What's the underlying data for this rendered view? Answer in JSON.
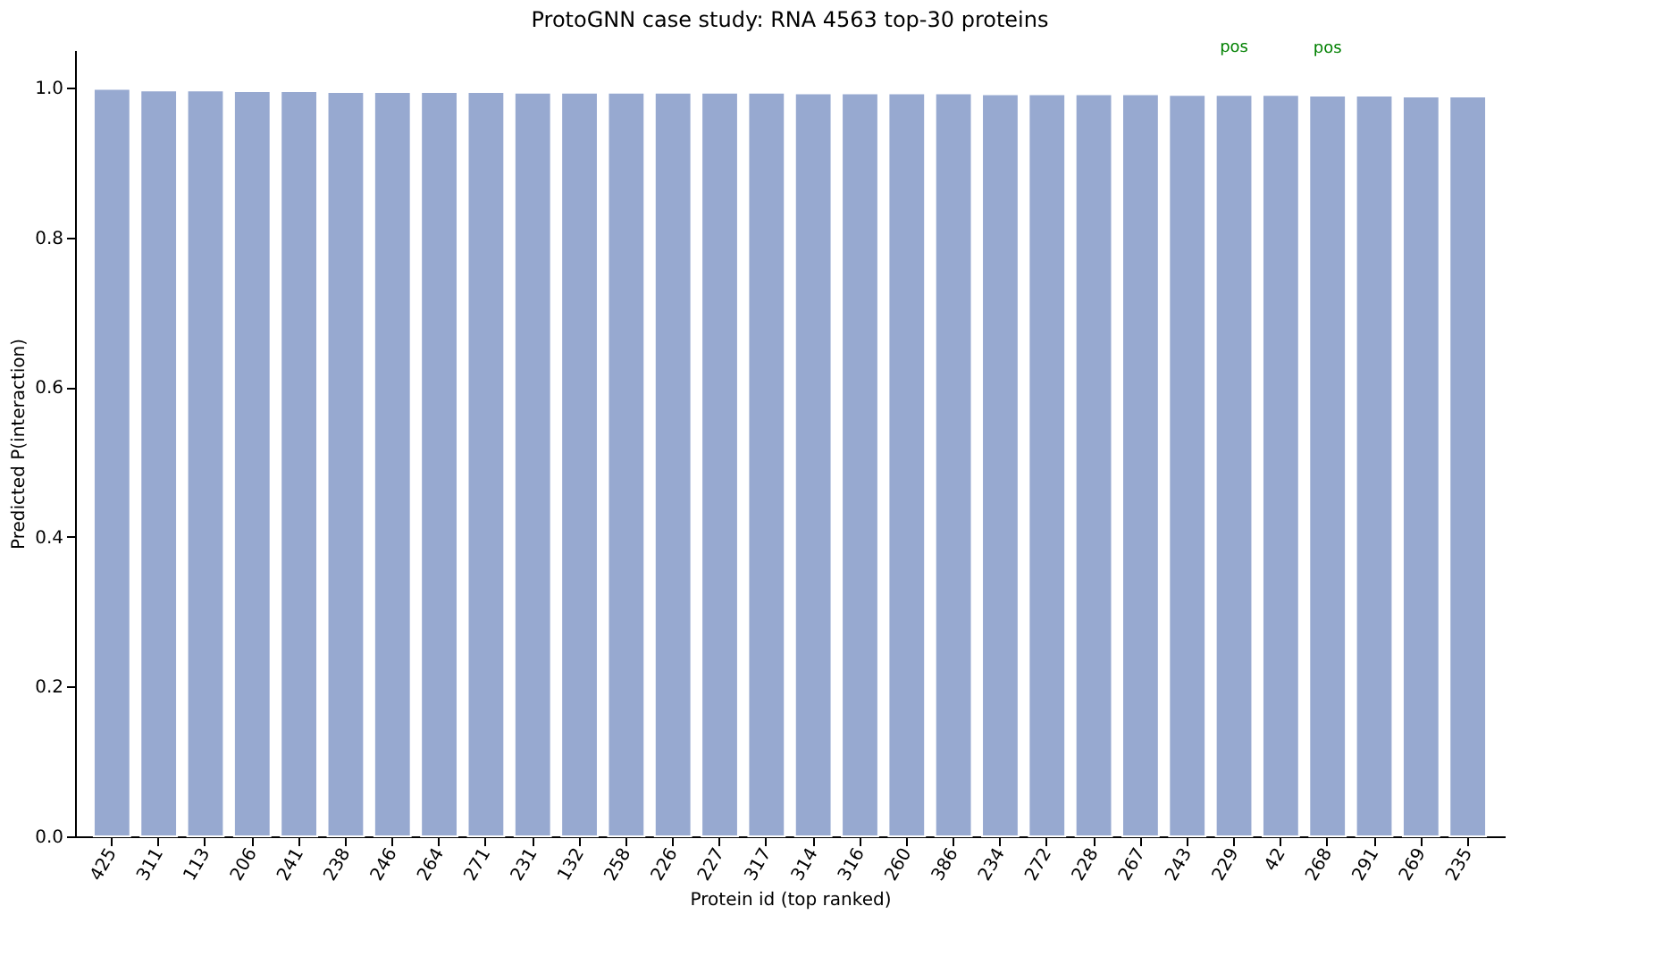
{
  "chart_data": {
    "type": "bar",
    "title": "ProtoGNN case study: RNA 4563 top-30 proteins",
    "xlabel": "Protein id (top ranked)",
    "ylabel": "Predicted P(interaction)",
    "categories": [
      "425",
      "311",
      "113",
      "206",
      "241",
      "238",
      "246",
      "264",
      "271",
      "231",
      "132",
      "258",
      "226",
      "227",
      "317",
      "314",
      "316",
      "260",
      "386",
      "234",
      "272",
      "228",
      "267",
      "243",
      "229",
      "42",
      "268",
      "291",
      "269",
      "235"
    ],
    "values": [
      0.998,
      0.996,
      0.996,
      0.995,
      0.995,
      0.994,
      0.994,
      0.994,
      0.994,
      0.993,
      0.993,
      0.993,
      0.993,
      0.993,
      0.993,
      0.992,
      0.992,
      0.992,
      0.992,
      0.991,
      0.991,
      0.991,
      0.991,
      0.99,
      0.99,
      0.99,
      0.989,
      0.989,
      0.988,
      0.988
    ],
    "color": "#97a9d0",
    "ylim": [
      0,
      1.05
    ],
    "yticks": [
      {
        "value": 0,
        "label": "0.0"
      },
      0.2,
      0.4,
      0.6,
      0.8,
      {
        "value": 1,
        "label": "1.0"
      }
    ],
    "annotations": [
      {
        "text": "pos",
        "x": "229",
        "y": 0.99
      },
      {
        "text": "pos",
        "x": "268",
        "y": 0.989
      }
    ],
    "grid": false
  }
}
